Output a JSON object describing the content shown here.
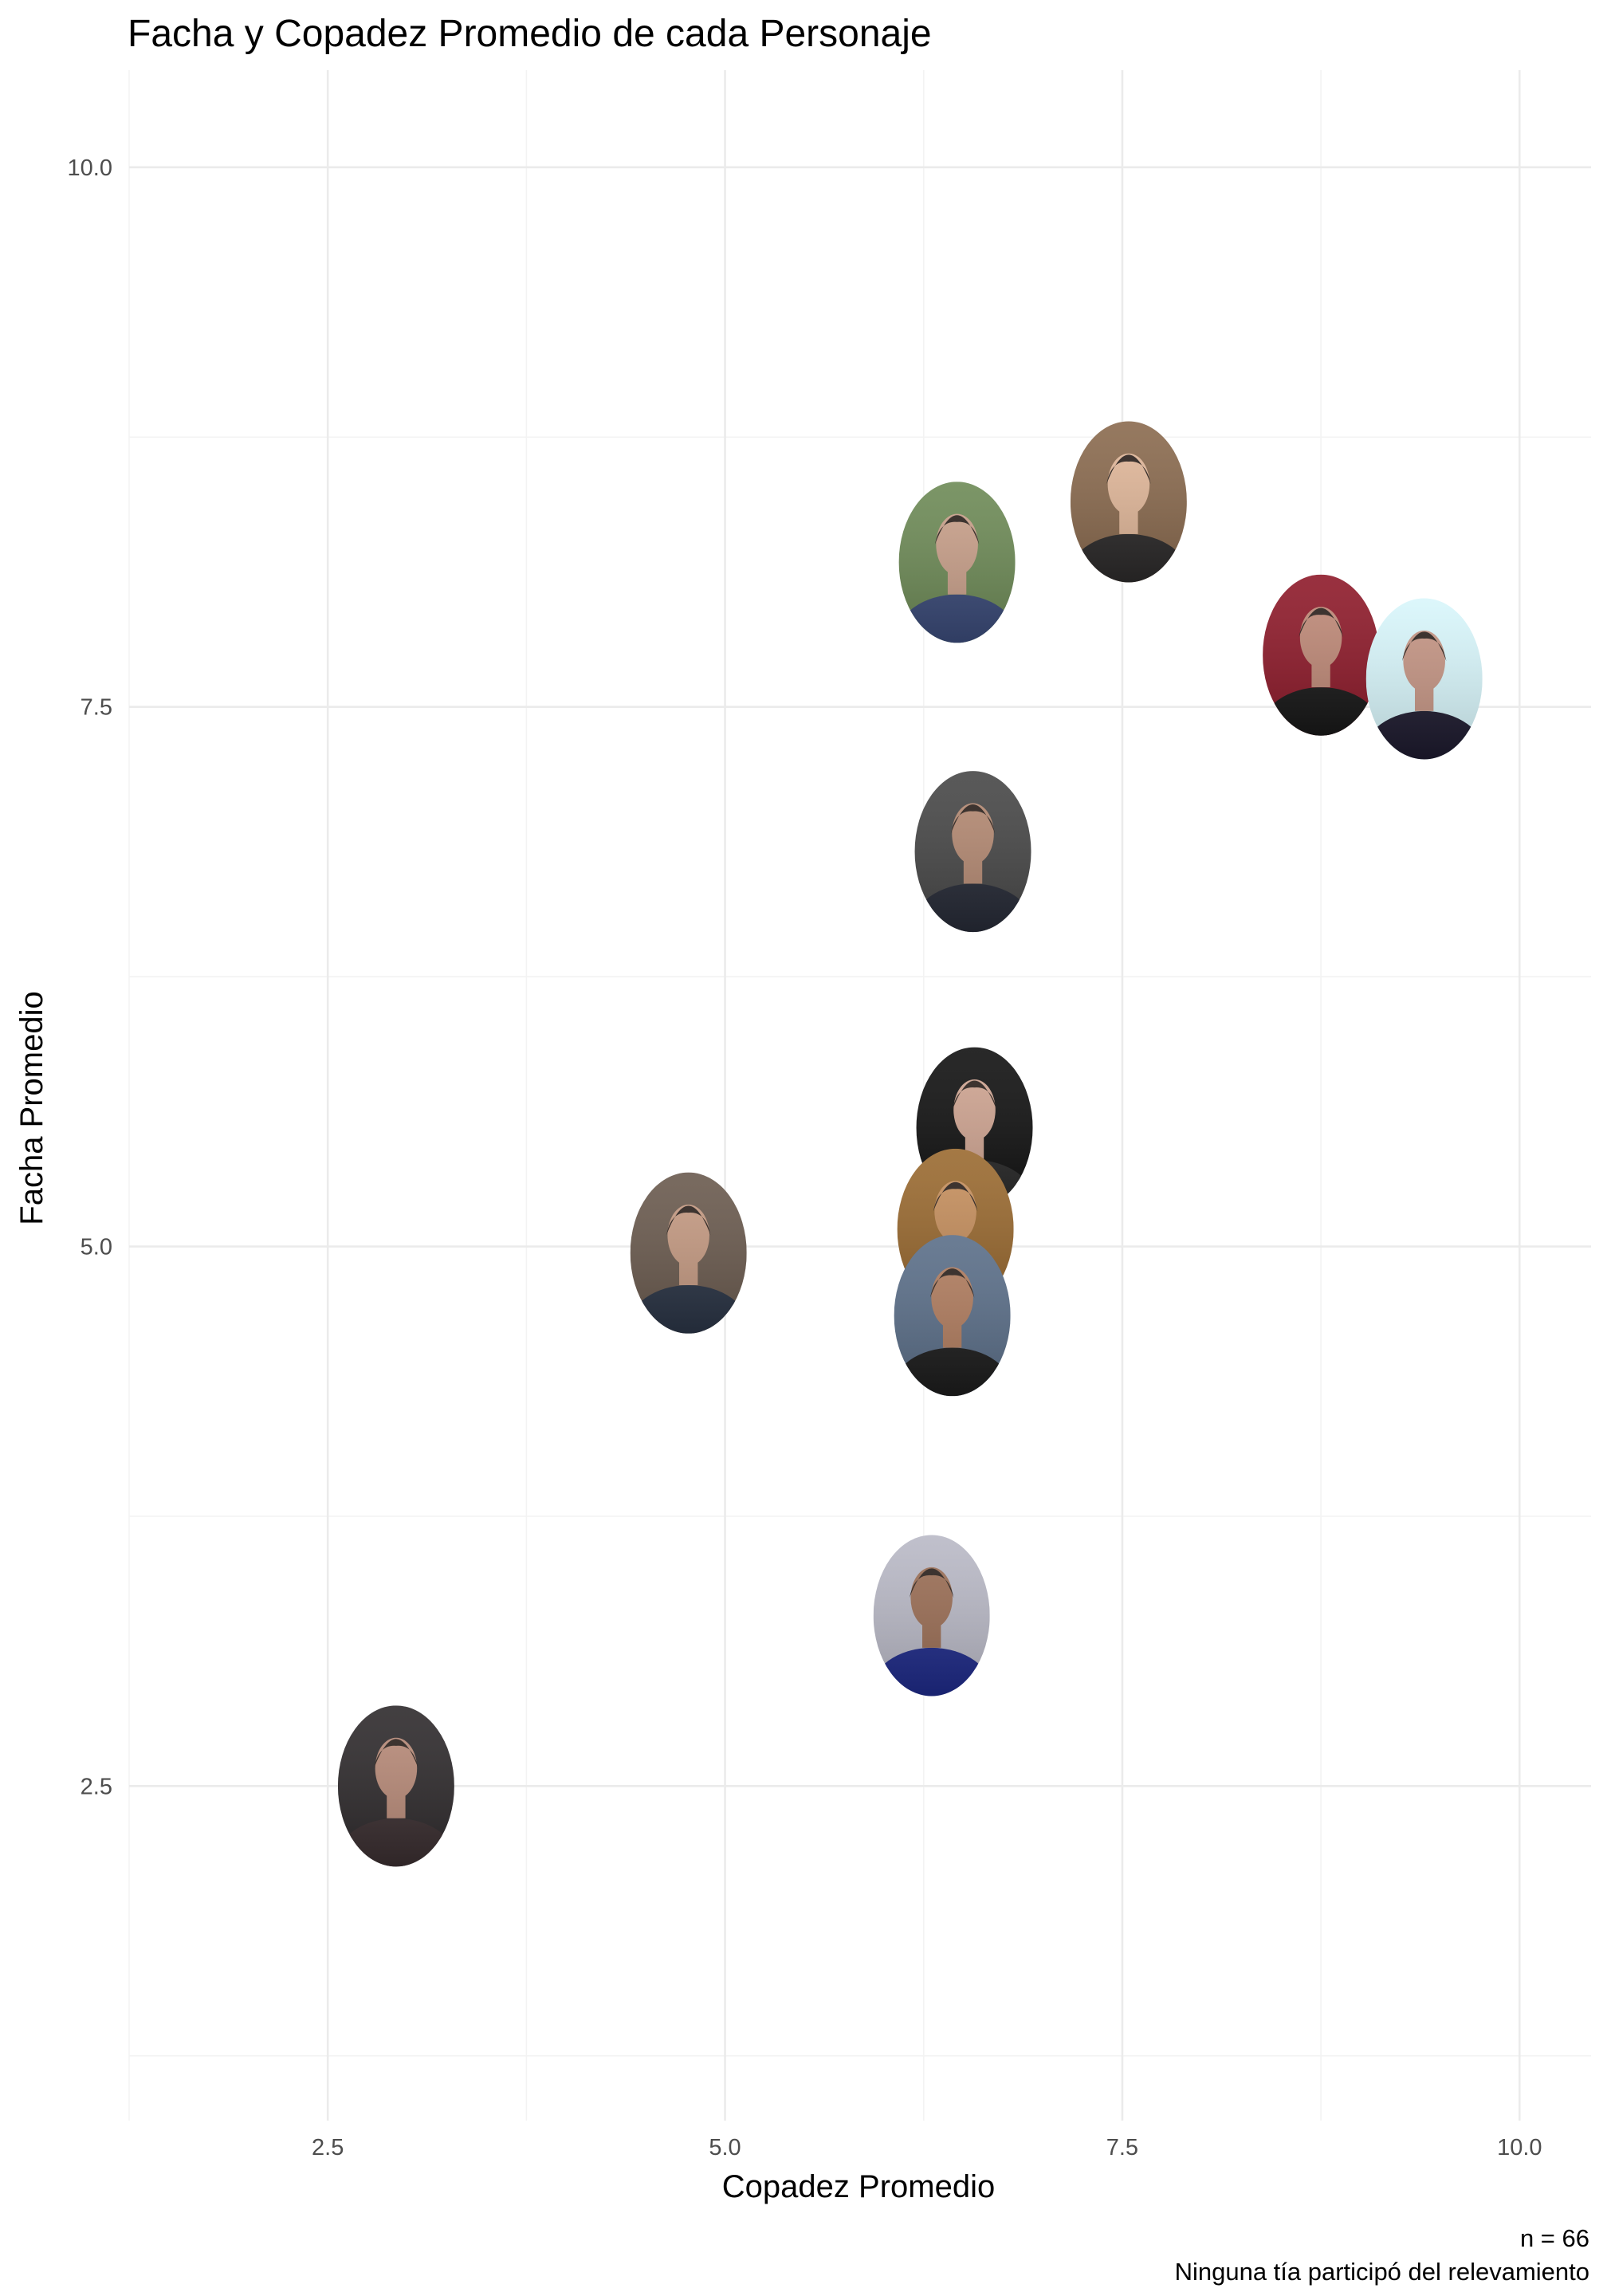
{
  "chart_data": {
    "type": "scatter",
    "title": "Facha y Copadez Promedio de cada Personaje",
    "xlabel": "Copadez Promedio",
    "ylabel": "Facha Promedio",
    "xlim": [
      1.25,
      10.45
    ],
    "ylim": [
      0.95,
      10.45
    ],
    "x_ticks": [
      2.5,
      5.0,
      7.5,
      10.0
    ],
    "x_tick_labels": [
      "2.5",
      "5.0",
      "7.5",
      "10.0"
    ],
    "y_ticks": [
      2.5,
      5.0,
      7.5,
      10.0
    ],
    "y_tick_labels": [
      "2.5",
      "5.0",
      "7.5",
      "10.0"
    ],
    "grid": true,
    "marker": "portrait-photo-ellipse",
    "points": [
      {
        "x": 7.54,
        "y": 8.45,
        "tone": [
          "#8a6a4e",
          "#e2b89a",
          "#2c2a2a"
        ]
      },
      {
        "x": 6.46,
        "y": 8.17,
        "tone": [
          "#6d8a56",
          "#c9a08a",
          "#3a4a78"
        ]
      },
      {
        "x": 8.75,
        "y": 7.74,
        "tone": [
          "#8e1a2a",
          "#c08a78",
          "#181818"
        ]
      },
      {
        "x": 9.4,
        "y": 7.63,
        "tone": [
          "#d8f6fb",
          "#c49483",
          "#1d1a2e"
        ]
      },
      {
        "x": 6.56,
        "y": 6.83,
        "tone": [
          "#474747",
          "#b58a73",
          "#262a36"
        ]
      },
      {
        "x": 6.57,
        "y": 5.55,
        "tone": [
          "#111111",
          "#d0a592",
          "#2a2a2a"
        ]
      },
      {
        "x": 6.45,
        "y": 5.08,
        "tone": [
          "#9a6a30",
          "#c7905e",
          "#5a3b1c"
        ]
      },
      {
        "x": 4.77,
        "y": 4.97,
        "tone": [
          "#6a5a4e",
          "#c59a82",
          "#2a3445"
        ]
      },
      {
        "x": 6.43,
        "y": 4.68,
        "tone": [
          "#5a6e88",
          "#b07c5e",
          "#1c1c1c"
        ]
      },
      {
        "x": 6.3,
        "y": 3.29,
        "tone": [
          "#b9b9c6",
          "#9b6e55",
          "#1e2a88"
        ]
      },
      {
        "x": 2.93,
        "y": 2.5,
        "tone": [
          "#2e2a2c",
          "#b88a78",
          "#3a2e30"
        ]
      }
    ]
  },
  "caption": {
    "line1": "n = 66",
    "line2": "Ninguna tía participó del relevamiento"
  }
}
